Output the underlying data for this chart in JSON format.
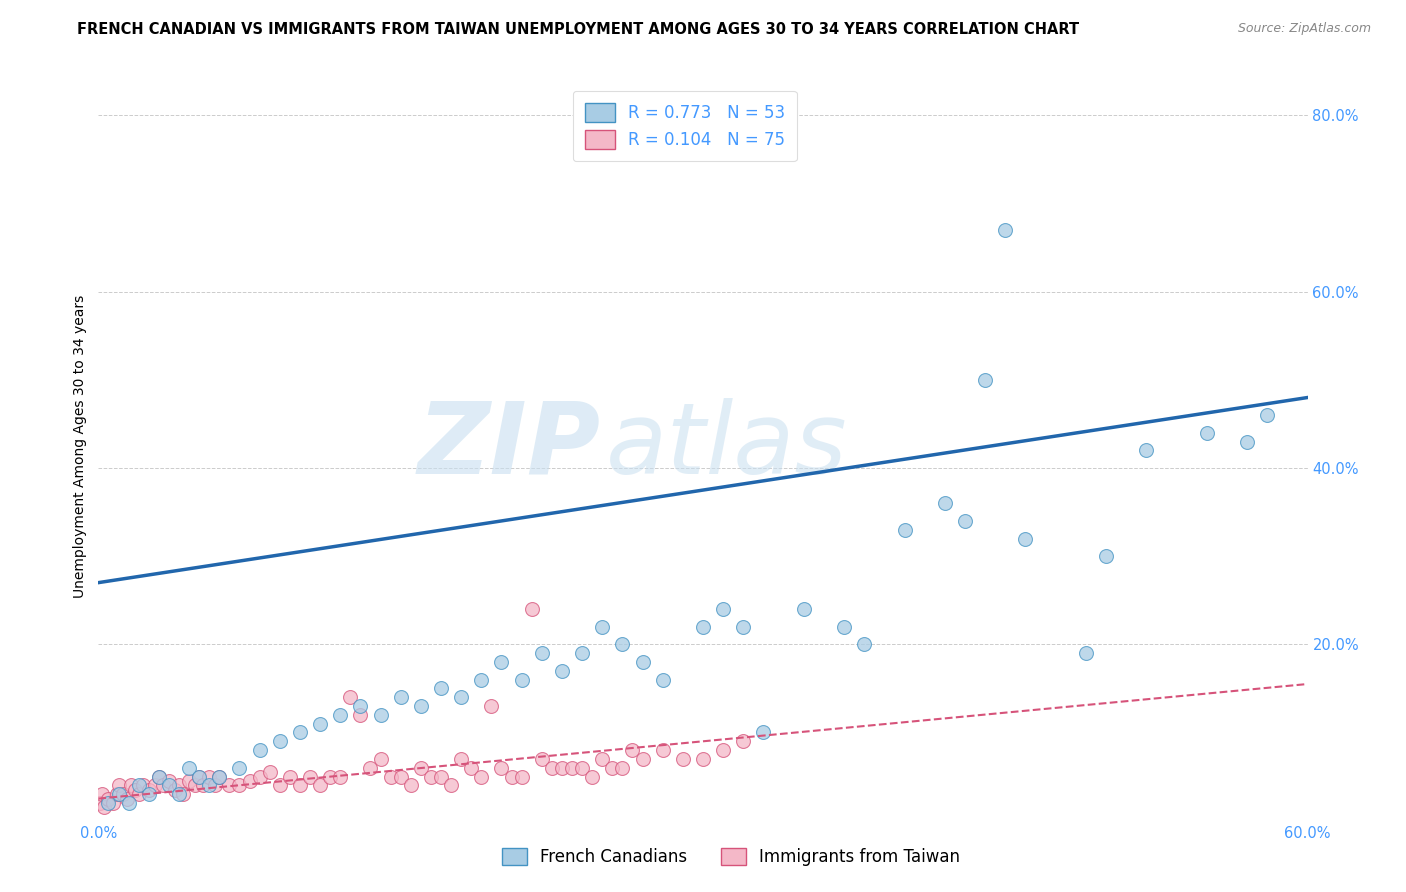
{
  "title": "FRENCH CANADIAN VS IMMIGRANTS FROM TAIWAN UNEMPLOYMENT AMONG AGES 30 TO 34 YEARS CORRELATION CHART",
  "source": "Source: ZipAtlas.com",
  "ylabel": "Unemployment Among Ages 30 to 34 years",
  "xlim": [
    0.0,
    0.6
  ],
  "ylim": [
    0.0,
    0.85
  ],
  "x_ticks": [
    0.0,
    0.1,
    0.2,
    0.3,
    0.4,
    0.5,
    0.6
  ],
  "y_ticks": [
    0.0,
    0.2,
    0.4,
    0.6,
    0.8
  ],
  "blue_color": "#a8cce4",
  "blue_edge": "#4393c3",
  "blue_line_color": "#2166ac",
  "pink_color": "#f4b8c8",
  "pink_edge": "#d6537a",
  "pink_line_color": "#d6537a",
  "R_blue": "0.773",
  "N_blue": "53",
  "R_pink": "0.104",
  "N_pink": "75",
  "watermark": "ZIPatlas",
  "legend_label_blue": "French Canadians",
  "legend_label_pink": "Immigrants from Taiwan",
  "blue_scatter_x": [
    0.005,
    0.01,
    0.015,
    0.02,
    0.025,
    0.03,
    0.035,
    0.04,
    0.045,
    0.05,
    0.055,
    0.06,
    0.07,
    0.08,
    0.09,
    0.1,
    0.11,
    0.12,
    0.13,
    0.14,
    0.15,
    0.16,
    0.17,
    0.18,
    0.19,
    0.2,
    0.21,
    0.22,
    0.23,
    0.24,
    0.25,
    0.26,
    0.27,
    0.28,
    0.3,
    0.31,
    0.32,
    0.33,
    0.35,
    0.37,
    0.38,
    0.4,
    0.42,
    0.43,
    0.44,
    0.45,
    0.46,
    0.49,
    0.5,
    0.52,
    0.55,
    0.57,
    0.58
  ],
  "blue_scatter_y": [
    0.02,
    0.03,
    0.02,
    0.04,
    0.03,
    0.05,
    0.04,
    0.03,
    0.06,
    0.05,
    0.04,
    0.05,
    0.06,
    0.08,
    0.09,
    0.1,
    0.11,
    0.12,
    0.13,
    0.12,
    0.14,
    0.13,
    0.15,
    0.14,
    0.16,
    0.18,
    0.16,
    0.19,
    0.17,
    0.19,
    0.22,
    0.2,
    0.18,
    0.16,
    0.22,
    0.24,
    0.22,
    0.1,
    0.24,
    0.22,
    0.2,
    0.33,
    0.36,
    0.34,
    0.5,
    0.67,
    0.32,
    0.19,
    0.3,
    0.42,
    0.44,
    0.43,
    0.46
  ],
  "pink_scatter_x": [
    0.001,
    0.002,
    0.003,
    0.005,
    0.007,
    0.009,
    0.01,
    0.012,
    0.014,
    0.016,
    0.018,
    0.02,
    0.022,
    0.025,
    0.028,
    0.03,
    0.032,
    0.035,
    0.038,
    0.04,
    0.042,
    0.045,
    0.048,
    0.05,
    0.052,
    0.055,
    0.058,
    0.06,
    0.065,
    0.07,
    0.075,
    0.08,
    0.085,
    0.09,
    0.095,
    0.1,
    0.105,
    0.11,
    0.115,
    0.12,
    0.125,
    0.13,
    0.135,
    0.14,
    0.145,
    0.15,
    0.155,
    0.16,
    0.165,
    0.17,
    0.175,
    0.18,
    0.185,
    0.19,
    0.195,
    0.2,
    0.205,
    0.21,
    0.215,
    0.22,
    0.225,
    0.23,
    0.235,
    0.24,
    0.245,
    0.25,
    0.255,
    0.26,
    0.265,
    0.27,
    0.28,
    0.29,
    0.3,
    0.31,
    0.32
  ],
  "pink_scatter_y": [
    0.02,
    0.03,
    0.015,
    0.025,
    0.02,
    0.03,
    0.04,
    0.03,
    0.025,
    0.04,
    0.035,
    0.03,
    0.04,
    0.035,
    0.04,
    0.05,
    0.04,
    0.045,
    0.035,
    0.04,
    0.03,
    0.045,
    0.04,
    0.05,
    0.04,
    0.05,
    0.04,
    0.05,
    0.04,
    0.04,
    0.045,
    0.05,
    0.055,
    0.04,
    0.05,
    0.04,
    0.05,
    0.04,
    0.05,
    0.05,
    0.14,
    0.12,
    0.06,
    0.07,
    0.05,
    0.05,
    0.04,
    0.06,
    0.05,
    0.05,
    0.04,
    0.07,
    0.06,
    0.05,
    0.13,
    0.06,
    0.05,
    0.05,
    0.24,
    0.07,
    0.06,
    0.06,
    0.06,
    0.06,
    0.05,
    0.07,
    0.06,
    0.06,
    0.08,
    0.07,
    0.08,
    0.07,
    0.07,
    0.08,
    0.09
  ],
  "blue_line_x": [
    0.0,
    0.6
  ],
  "blue_line_y": [
    0.27,
    0.48
  ],
  "pink_line_x": [
    0.0,
    0.6
  ],
  "pink_line_y": [
    0.025,
    0.155
  ],
  "title_fontsize": 10.5,
  "axis_label_fontsize": 10,
  "tick_fontsize": 10.5,
  "legend_fontsize": 12,
  "marker_size": 100,
  "background_color": "#ffffff",
  "grid_color": "#cccccc",
  "tick_color": "#4499ff",
  "label_color": "#4499ff"
}
